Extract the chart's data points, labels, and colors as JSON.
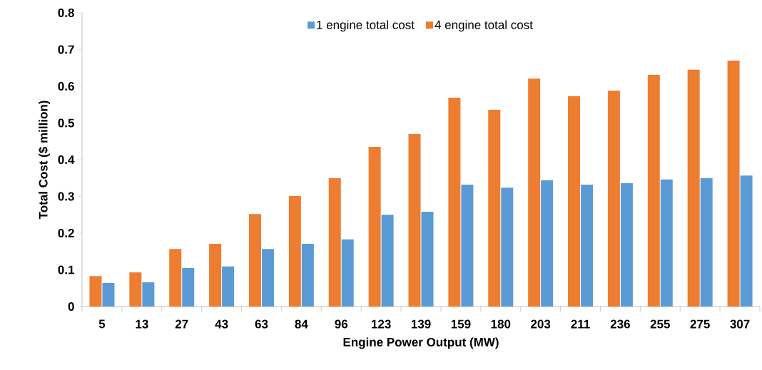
{
  "chart_data": {
    "type": "bar",
    "xlabel": "Engine Power Output (MW)",
    "ylabel": "Total Cost ($ million)",
    "categories": [
      "5",
      "13",
      "27",
      "43",
      "63",
      "84",
      "96",
      "123",
      "139",
      "159",
      "180",
      "203",
      "211",
      "236",
      "255",
      "275",
      "307"
    ],
    "series": [
      {
        "name": "4 engine total cost",
        "color": "#ed7d31",
        "values": [
          0.083,
          0.093,
          0.157,
          0.171,
          0.252,
          0.301,
          0.35,
          0.435,
          0.47,
          0.569,
          0.536,
          0.621,
          0.573,
          0.588,
          0.631,
          0.645,
          0.67
        ]
      },
      {
        "name": "1 engine total cost",
        "color": "#5b9bd5",
        "values": [
          0.064,
          0.066,
          0.105,
          0.109,
          0.157,
          0.171,
          0.183,
          0.25,
          0.258,
          0.332,
          0.324,
          0.344,
          0.332,
          0.336,
          0.346,
          0.35,
          0.357
        ]
      }
    ],
    "ylim": [
      0,
      0.8
    ],
    "yticks": [
      0,
      0.1,
      0.2,
      0.3,
      0.4,
      0.5,
      0.6,
      0.7,
      0.8
    ],
    "grid": false,
    "legend": "top"
  }
}
